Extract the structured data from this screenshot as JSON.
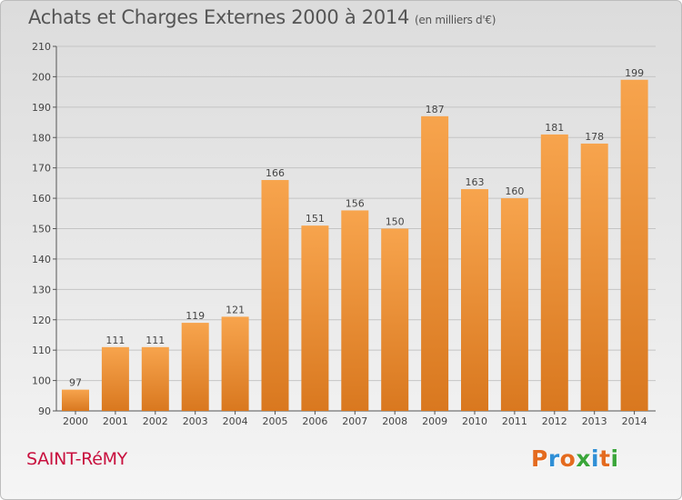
{
  "header": {
    "title": "Achats et Charges Externes 2000 à 2014",
    "unit": "(en milliers d'€)"
  },
  "footer": {
    "city": "SAINT-RéMY",
    "logo": "Proxiti"
  },
  "colors": {
    "bar_light": "#f7a44d",
    "bar_dark": "#d9781f",
    "city": "#c8103e",
    "logo_letters": [
      "#e46b1f",
      "#2f8fd6",
      "#e46b1f",
      "#3aa63a",
      "#2f8fd6",
      "#e46b1f",
      "#3aa63a"
    ]
  },
  "chart_data": {
    "type": "bar",
    "title": "Achats et Charges Externes 2000 à 2014",
    "subtitle": "(en milliers d'€)",
    "categories": [
      "2000",
      "2001",
      "2002",
      "2003",
      "2004",
      "2005",
      "2006",
      "2007",
      "2008",
      "2009",
      "2010",
      "2011",
      "2012",
      "2013",
      "2014"
    ],
    "values": [
      97,
      111,
      111,
      119,
      121,
      166,
      151,
      156,
      150,
      187,
      163,
      160,
      181,
      178,
      199
    ],
    "ylim": [
      90,
      210
    ],
    "yticks": [
      90,
      100,
      110,
      120,
      130,
      140,
      150,
      160,
      170,
      180,
      190,
      200,
      210
    ],
    "grid": true
  }
}
